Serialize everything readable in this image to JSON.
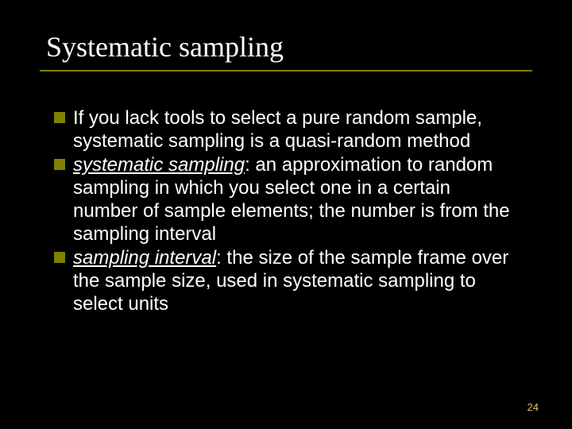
{
  "slide": {
    "title": "Systematic sampling",
    "bullets": [
      {
        "prefix": "",
        "term": "",
        "text": "If you lack tools to select a pure random sample, systematic sampling is a quasi-random method"
      },
      {
        "prefix": "",
        "term": "systematic sampling",
        "text": ": an approximation to random sampling in which you select one in a certain number of sample elements; the number is from the sampling interval"
      },
      {
        "prefix": "",
        "term": "sampling interval",
        "text": ": the size of the sample frame over the sample size, used in systematic sampling to select units"
      }
    ],
    "page_number": "24"
  },
  "style": {
    "background_color": "#000000",
    "text_color": "#ffffff",
    "accent_color": "#808000",
    "page_number_color": "#e0c070",
    "title_font": "Times New Roman",
    "body_font": "Arial",
    "title_fontsize": 36,
    "body_fontsize": 24,
    "bullet_marker_size": 14
  }
}
